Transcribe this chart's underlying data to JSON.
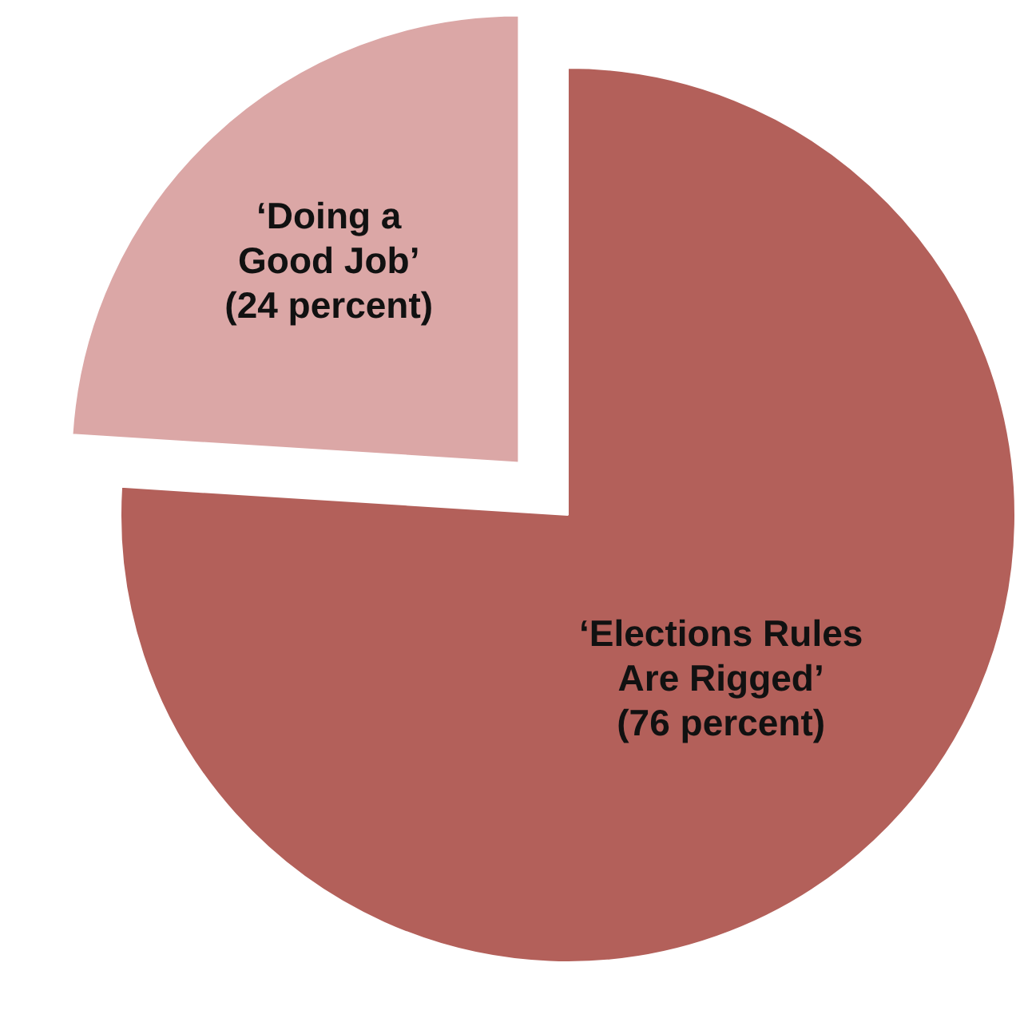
{
  "chart_data": {
    "type": "pie",
    "categories": [
      "‘Elections Rules Are Rigged’",
      "‘Doing a Good Job’"
    ],
    "values": [
      76,
      24
    ],
    "value_labels": [
      "(76 percent)",
      "(24 percent)"
    ],
    "colors": [
      "#b3605a",
      "#dba7a6"
    ]
  }
}
